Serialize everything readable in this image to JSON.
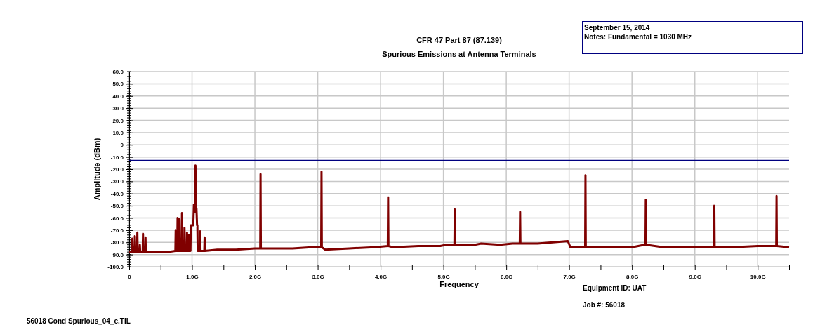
{
  "chart_data": {
    "type": "line",
    "title": "CFR 47 Part 87 (87.139)",
    "subtitle": "Spurious Emissions at Antenna Terminals",
    "xlabel": "Frequency",
    "ylabel": "Amplitude (dBm)",
    "annotations": [
      "September 15, 2014",
      "Notes: Fundamental = 1030 MHz",
      "Equipment ID: UAT",
      "Job #: 56018",
      "56018 Cond Spurious_04_c.TIL"
    ],
    "xlim": [
      0,
      10.5
    ],
    "ylim": [
      -100,
      60
    ],
    "xticks": [
      0,
      {
        "value": 0.5,
        "label": null
      },
      {
        "value": 1,
        "label": "1.0G"
      },
      {
        "value": 1.5,
        "label": null
      },
      {
        "value": 2,
        "label": "2.0G"
      },
      {
        "value": 2.5,
        "label": null
      },
      {
        "value": 3,
        "label": "3.0G"
      },
      {
        "value": 3.5,
        "label": null
      },
      {
        "value": 4,
        "label": "4.0G"
      },
      {
        "value": 4.5,
        "label": null
      },
      {
        "value": 5,
        "label": "5.0G"
      },
      {
        "value": 5.5,
        "label": null
      },
      {
        "value": 6,
        "label": "6.0G"
      },
      {
        "value": 6.5,
        "label": null
      },
      {
        "value": 7,
        "label": "7.0G"
      },
      {
        "value": 7.5,
        "label": null
      },
      {
        "value": 8,
        "label": "8.0G"
      },
      {
        "value": 8.5,
        "label": null
      },
      {
        "value": 9,
        "label": "9.0G"
      },
      {
        "value": 9.5,
        "label": null
      },
      {
        "value": 10,
        "label": "10.0G"
      },
      {
        "value": 10.5,
        "label": null
      }
    ],
    "yticks": [
      {
        "value": -100,
        "label": "-100.0"
      },
      {
        "value": -90,
        "label": "-90.0"
      },
      {
        "value": -80,
        "label": "-80.0"
      },
      {
        "value": -70,
        "label": "-70.0"
      },
      {
        "value": -60,
        "label": "-60.0"
      },
      {
        "value": -50,
        "label": "-50.0"
      },
      {
        "value": -40,
        "label": "-40.0"
      },
      {
        "value": -30,
        "label": "-30.0"
      },
      {
        "value": -20,
        "label": "-20.0"
      },
      {
        "value": -10,
        "label": "-10.0"
      },
      0,
      {
        "value": 10,
        "label": "10.0"
      },
      {
        "value": 20,
        "label": "20.0"
      },
      {
        "value": 30,
        "label": "30.0"
      },
      {
        "value": 40,
        "label": "40.0"
      },
      {
        "value": 50,
        "label": "50.0"
      },
      {
        "value": 60,
        "label": "60.0"
      }
    ],
    "grid": true,
    "ref_lines": [
      {
        "axis": "y",
        "value": -13,
        "color": "#000080"
      }
    ],
    "series": [
      {
        "color": "#800000",
        "x": [
          0,
          0.045,
          0.05,
          0.055,
          0.085,
          0.09,
          0.095,
          0.125,
          0.13,
          0.135,
          0.165,
          0.17,
          0.175,
          0.215,
          0.22,
          0.225,
          0.255,
          0.26,
          0.265,
          0.4,
          0.6,
          0.735,
          0.74,
          0.745,
          0.765,
          0.77,
          0.775,
          0.795,
          0.8,
          0.805,
          0.835,
          0.84,
          0.845,
          0.875,
          0.88,
          0.885,
          0.915,
          0.92,
          0.925,
          0.945,
          0.95,
          0.955,
          0.97,
          0.975,
          0.98,
          1.0,
          1.02,
          1.03,
          1.04,
          1.05,
          1.055,
          1.06,
          1.07,
          1.08,
          1.085,
          1.09,
          1.1,
          1.125,
          1.13,
          1.135,
          1.195,
          1.2,
          1.205,
          1.4,
          1.7,
          2.0,
          2.085,
          2.09,
          2.095,
          2.3,
          2.6,
          2.9,
          3.055,
          3.06,
          3.065,
          3.12,
          3.5,
          3.9,
          4.115,
          4.12,
          4.125,
          4.2,
          4.6,
          4.95,
          5.05,
          5.175,
          5.18,
          5.185,
          5.5,
          5.6,
          5.9,
          6.1,
          6.215,
          6.22,
          6.225,
          6.5,
          6.98,
          7.02,
          7.255,
          7.26,
          7.265,
          7.6,
          8.0,
          8.2,
          8.215,
          8.22,
          8.225,
          8.5,
          9.0,
          9.305,
          9.31,
          9.315,
          9.6,
          10.0,
          10.295,
          10.3,
          10.305,
          10.5
        ],
        "values": [
          -88,
          -88,
          -77,
          -88,
          -88,
          -75,
          -88,
          -88,
          -72,
          -88,
          -88,
          -82,
          -88,
          -88,
          -73,
          -88,
          -88,
          -76,
          -88,
          -88,
          -88,
          -87,
          -70,
          -87,
          -87,
          -60,
          -87,
          -87,
          -61,
          -87,
          -87,
          -56,
          -87,
          -87,
          -68,
          -87,
          -87,
          -72,
          -87,
          -87,
          -74,
          -87,
          -87,
          -87,
          -66,
          -66,
          -66,
          -49,
          -55,
          -50,
          -17,
          -55,
          -52,
          -66,
          -66,
          -87,
          -87,
          -87,
          -71,
          -87,
          -87,
          -76,
          -87,
          -86,
          -86,
          -85,
          -85,
          -24,
          -85,
          -85,
          -85,
          -84,
          -84,
          -22,
          -84,
          -86,
          -85,
          -84,
          -83,
          -43,
          -83,
          -84,
          -83,
          -83,
          -82,
          -82,
          -53,
          -82,
          -82,
          -81,
          -82,
          -81,
          -81,
          -55,
          -81,
          -81,
          -79,
          -84,
          -84,
          -25,
          -84,
          -84,
          -84,
          -82,
          -82,
          -45,
          -82,
          -84,
          -84,
          -84,
          -50,
          -84,
          -84,
          -83,
          -83,
          -42,
          -83,
          -84
        ]
      }
    ]
  }
}
